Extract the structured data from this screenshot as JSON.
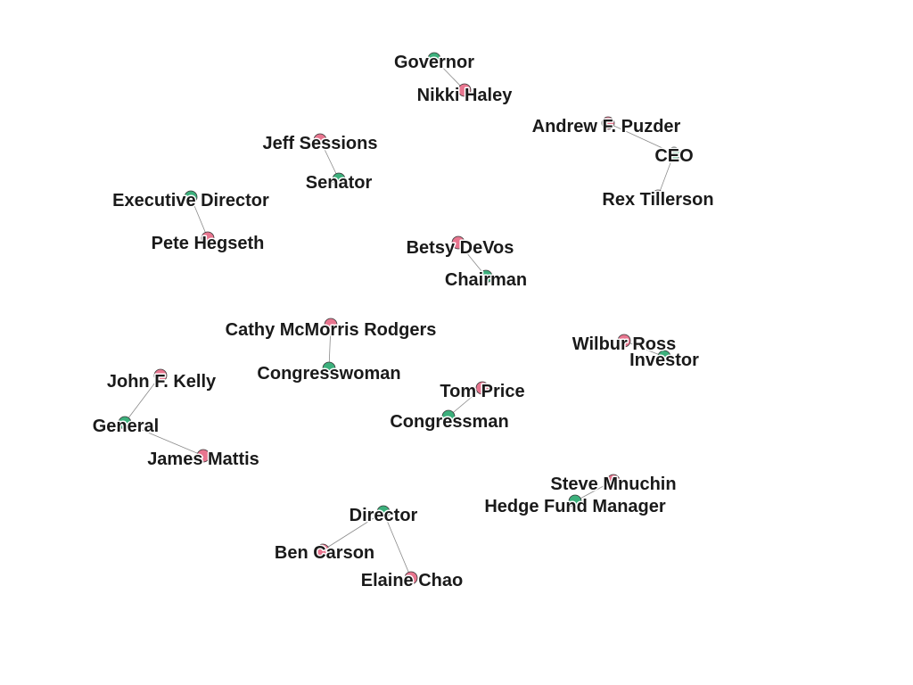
{
  "colors": {
    "person": "#e8758f",
    "role": "#3cb07c",
    "edge": "#8a8a8a"
  },
  "nodes": [
    {
      "id": "governor",
      "label": "Governor",
      "group": "role"
    },
    {
      "id": "haley",
      "label": "Nikki Haley",
      "group": "person"
    },
    {
      "id": "puzder",
      "label": "Andrew F. Puzder",
      "group": "person"
    },
    {
      "id": "ceo",
      "label": "CEO",
      "group": "role"
    },
    {
      "id": "tillerson",
      "label": "Rex Tillerson",
      "group": "person"
    },
    {
      "id": "sessions",
      "label": "Jeff Sessions",
      "group": "person"
    },
    {
      "id": "senator",
      "label": "Senator",
      "group": "role"
    },
    {
      "id": "execdir",
      "label": "Executive Director",
      "group": "role"
    },
    {
      "id": "hegseth",
      "label": "Pete Hegseth",
      "group": "person"
    },
    {
      "id": "devos",
      "label": "Betsy DeVos",
      "group": "person"
    },
    {
      "id": "chairman",
      "label": "Chairman",
      "group": "role"
    },
    {
      "id": "rodgers",
      "label": "Cathy McMorris Rodgers",
      "group": "person"
    },
    {
      "id": "congresswoman",
      "label": "Congresswoman",
      "group": "role"
    },
    {
      "id": "ross",
      "label": "Wilbur Ross",
      "group": "person"
    },
    {
      "id": "investor",
      "label": "Investor",
      "group": "role"
    },
    {
      "id": "kelly",
      "label": "John F. Kelly",
      "group": "person"
    },
    {
      "id": "general",
      "label": "General",
      "group": "role"
    },
    {
      "id": "mattis",
      "label": "James Mattis",
      "group": "person"
    },
    {
      "id": "price",
      "label": "Tom Price",
      "group": "person"
    },
    {
      "id": "congressman",
      "label": "Congressman",
      "group": "role"
    },
    {
      "id": "mnuchin",
      "label": "Steve Mnuchin",
      "group": "person"
    },
    {
      "id": "hfm",
      "label": "Hedge Fund Manager",
      "group": "role"
    },
    {
      "id": "director",
      "label": "Director",
      "group": "role"
    },
    {
      "id": "carson",
      "label": "Ben Carson",
      "group": "person"
    },
    {
      "id": "chao",
      "label": "Elaine Chao",
      "group": "person"
    }
  ],
  "edges": [
    [
      "governor",
      "haley"
    ],
    [
      "puzder",
      "ceo"
    ],
    [
      "ceo",
      "tillerson"
    ],
    [
      "sessions",
      "senator"
    ],
    [
      "execdir",
      "hegseth"
    ],
    [
      "devos",
      "chairman"
    ],
    [
      "rodgers",
      "congresswoman"
    ],
    [
      "ross",
      "investor"
    ],
    [
      "kelly",
      "general"
    ],
    [
      "general",
      "mattis"
    ],
    [
      "price",
      "congressman"
    ],
    [
      "mnuchin",
      "hfm"
    ],
    [
      "director",
      "carson"
    ],
    [
      "director",
      "chao"
    ]
  ]
}
